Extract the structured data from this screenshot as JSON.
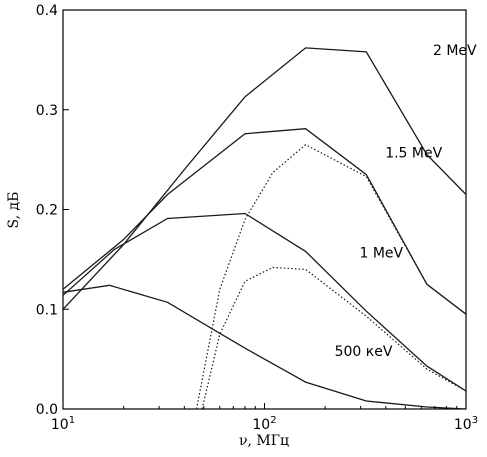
{
  "chart_data": {
    "type": "line",
    "xlabel": "ν, МГц",
    "ylabel": "S, дБ",
    "xscale": "log",
    "xlim": [
      10,
      1000
    ],
    "ylim": [
      0,
      0.4
    ],
    "grid": false,
    "x_ticks": [
      {
        "value": 10,
        "base": "10",
        "exp": "1"
      },
      {
        "value": 100,
        "base": "10",
        "exp": "2"
      },
      {
        "value": 1000,
        "base": "10",
        "exp": "3"
      }
    ],
    "y_ticks": [
      {
        "value": 0,
        "label": "0.0"
      },
      {
        "value": 0.1,
        "label": "0.1"
      },
      {
        "value": 0.2,
        "label": "0.2"
      },
      {
        "value": 0.3,
        "label": "0.3"
      },
      {
        "value": 0.4,
        "label": "0.4"
      }
    ],
    "series": [
      {
        "name": "2 МеV",
        "style": "solid",
        "label_at": [
          880,
          0.355
        ],
        "x": [
          10,
          20,
          40,
          80,
          160,
          320,
          640,
          1000
        ],
        "y": [
          0.1,
          0.165,
          0.24,
          0.313,
          0.362,
          0.358,
          0.255,
          0.215
        ]
      },
      {
        "name": "1.5 МеV",
        "style": "solid",
        "label_at": [
          550,
          0.252
        ],
        "x": [
          10,
          20,
          33,
          80,
          160,
          320,
          640,
          1000
        ],
        "y": [
          0.12,
          0.17,
          0.215,
          0.276,
          0.281,
          0.235,
          0.125,
          0.095
        ]
      },
      {
        "name": "1 МеV",
        "style": "solid",
        "label_at": [
          380,
          0.152
        ],
        "x": [
          10,
          18,
          33,
          80,
          160,
          320,
          640,
          1000
        ],
        "y": [
          0.114,
          0.16,
          0.191,
          0.196,
          0.158,
          0.098,
          0.043,
          0.018
        ]
      },
      {
        "name": "500 кеV",
        "style": "solid",
        "label_at": [
          310,
          0.053
        ],
        "x": [
          10,
          17,
          33,
          80,
          160,
          320,
          640,
          1000
        ],
        "y": [
          0.117,
          0.124,
          0.107,
          0.061,
          0.027,
          0.008,
          0.002,
          0.0
        ]
      },
      {
        "name": "",
        "style": "dotted",
        "x": [
          46,
          60,
          80,
          110,
          160,
          320,
          640,
          1000
        ],
        "y": [
          0.0,
          0.12,
          0.19,
          0.237,
          0.265,
          0.233,
          0.125,
          0.095
        ]
      },
      {
        "name": "",
        "style": "dotted",
        "x": [
          49,
          60,
          80,
          110,
          160,
          320,
          640,
          1000
        ],
        "y": [
          0.0,
          0.075,
          0.128,
          0.142,
          0.14,
          0.093,
          0.04,
          0.018
        ]
      }
    ]
  }
}
